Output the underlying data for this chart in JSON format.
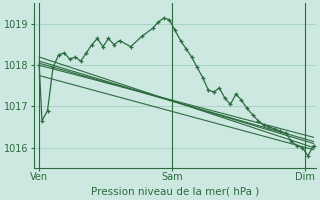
{
  "title": "Pression niveau de la mer( hPa )",
  "bg_color": "#cce8e0",
  "plot_bg_color": "#cce8e0",
  "grid_color": "#99ccbb",
  "line_color": "#2d6a3f",
  "yticks": [
    1016,
    1017,
    1018,
    1019
  ],
  "xtick_labels": [
    "Ven",
    "Sam",
    "Dim"
  ],
  "xtick_positions": [
    0,
    48,
    96
  ],
  "xlim": [
    -2,
    100
  ],
  "ylim": [
    1015.5,
    1019.5
  ],
  "main_series": [
    [
      0,
      1018.0
    ],
    [
      1,
      1016.65
    ],
    [
      3,
      1016.9
    ],
    [
      5,
      1017.95
    ],
    [
      7,
      1018.25
    ],
    [
      9,
      1018.3
    ],
    [
      11,
      1018.15
    ],
    [
      13,
      1018.2
    ],
    [
      15,
      1018.1
    ],
    [
      17,
      1018.3
    ],
    [
      19,
      1018.5
    ],
    [
      21,
      1018.65
    ],
    [
      23,
      1018.45
    ],
    [
      25,
      1018.65
    ],
    [
      27,
      1018.5
    ],
    [
      29,
      1018.6
    ],
    [
      33,
      1018.45
    ],
    [
      37,
      1018.7
    ],
    [
      41,
      1018.9
    ],
    [
      43,
      1019.05
    ],
    [
      45,
      1019.15
    ],
    [
      47,
      1019.1
    ],
    [
      49,
      1018.85
    ],
    [
      51,
      1018.6
    ],
    [
      53,
      1018.4
    ],
    [
      55,
      1018.2
    ],
    [
      57,
      1017.95
    ],
    [
      59,
      1017.7
    ],
    [
      61,
      1017.4
    ],
    [
      63,
      1017.35
    ],
    [
      65,
      1017.45
    ],
    [
      67,
      1017.2
    ],
    [
      69,
      1017.05
    ],
    [
      71,
      1017.3
    ],
    [
      73,
      1017.15
    ],
    [
      75,
      1016.95
    ],
    [
      77,
      1016.8
    ],
    [
      79,
      1016.65
    ],
    [
      81,
      1016.55
    ],
    [
      83,
      1016.5
    ],
    [
      85,
      1016.45
    ],
    [
      87,
      1016.4
    ],
    [
      89,
      1016.35
    ],
    [
      91,
      1016.15
    ],
    [
      93,
      1016.05
    ],
    [
      95,
      1016.0
    ],
    [
      97,
      1015.8
    ],
    [
      99,
      1016.05
    ]
  ],
  "linear_lines": [
    {
      "x0": 0,
      "y0": 1018.2,
      "x1": 99,
      "y1": 1016.0
    },
    {
      "x0": 0,
      "y0": 1018.1,
      "x1": 99,
      "y1": 1016.1
    },
    {
      "x0": 0,
      "y0": 1018.05,
      "x1": 99,
      "y1": 1016.15
    },
    {
      "x0": 0,
      "y0": 1018.0,
      "x1": 99,
      "y1": 1016.25
    },
    {
      "x0": 0,
      "y0": 1017.75,
      "x1": 99,
      "y1": 1015.95
    }
  ],
  "vline_positions": [
    0,
    48,
    96
  ]
}
